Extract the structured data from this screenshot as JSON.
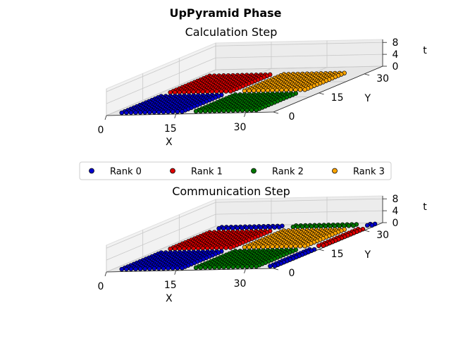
{
  "figure": {
    "suptitle": "UpPyramid Phase"
  },
  "legend": {
    "placement": "center",
    "entries": [
      {
        "label": "Rank 0",
        "color": "#0000cc"
      },
      {
        "label": "Rank 1",
        "color": "#dd0000"
      },
      {
        "label": "Rank 2",
        "color": "#007700"
      },
      {
        "label": "Rank 3",
        "color": "#ffa500"
      }
    ]
  },
  "chart_data": [
    {
      "type": "scatter3d",
      "title": "Calculation Step",
      "xlabel": "X",
      "ylabel": "Y",
      "zlabel": "t",
      "xticks": [
        "0",
        "15",
        "30"
      ],
      "yticks": [
        "0",
        "15",
        "30"
      ],
      "zticks": [
        "0",
        "4",
        "8"
      ],
      "xlim": [
        0,
        36
      ],
      "ylim": [
        0,
        36
      ],
      "zlim": [
        0,
        9
      ],
      "grid": true,
      "series": [
        {
          "name": "Rank 0",
          "color": "#0000cc",
          "blocks": [
            {
              "x": [
                2,
                15
              ],
              "y": [
                2,
                15
              ],
              "t": 0
            }
          ]
        },
        {
          "name": "Rank 1",
          "color": "#dd0000",
          "blocks": [
            {
              "x": [
                2,
                15
              ],
              "y": [
                18,
                31
              ],
              "t": 0
            }
          ]
        },
        {
          "name": "Rank 2",
          "color": "#007700",
          "blocks": [
            {
              "x": [
                18,
                31
              ],
              "y": [
                2,
                15
              ],
              "t": 0
            }
          ]
        },
        {
          "name": "Rank 3",
          "color": "#ffa500",
          "blocks": [
            {
              "x": [
                18,
                31
              ],
              "y": [
                18,
                31
              ],
              "t": 0
            }
          ]
        }
      ]
    },
    {
      "type": "scatter3d",
      "title": "Communication Step",
      "xlabel": "X",
      "ylabel": "Y",
      "zlabel": "t",
      "xticks": [
        "0",
        "15",
        "30"
      ],
      "yticks": [
        "0",
        "15",
        "30"
      ],
      "zticks": [
        "0",
        "4",
        "8"
      ],
      "xlim": [
        0,
        36
      ],
      "ylim": [
        0,
        36
      ],
      "zlim": [
        0,
        9
      ],
      "grid": true,
      "series": [
        {
          "name": "Rank 0",
          "color": "#0000cc",
          "blocks": [
            {
              "x": [
                2,
                15
              ],
              "y": [
                2,
                15
              ],
              "t": 0
            },
            {
              "x": [
                2,
                15
              ],
              "y": [
                34,
                35
              ],
              "t": 0
            },
            {
              "x": [
                34,
                35
              ],
              "y": [
                2,
                15
              ],
              "t": 0
            },
            {
              "x": [
                34,
                35
              ],
              "y": [
                34,
                35
              ],
              "t": 0
            }
          ]
        },
        {
          "name": "Rank 1",
          "color": "#dd0000",
          "blocks": [
            {
              "x": [
                2,
                15
              ],
              "y": [
                18,
                31
              ],
              "t": 0
            },
            {
              "x": [
                34,
                35
              ],
              "y": [
                18,
                31
              ],
              "t": 0
            }
          ]
        },
        {
          "name": "Rank 2",
          "color": "#007700",
          "blocks": [
            {
              "x": [
                18,
                31
              ],
              "y": [
                2,
                15
              ],
              "t": 0
            },
            {
              "x": [
                18,
                31
              ],
              "y": [
                34,
                35
              ],
              "t": 0
            }
          ]
        },
        {
          "name": "Rank 3",
          "color": "#ffa500",
          "blocks": [
            {
              "x": [
                18,
                31
              ],
              "y": [
                18,
                31
              ],
              "t": 0
            }
          ]
        }
      ]
    }
  ]
}
